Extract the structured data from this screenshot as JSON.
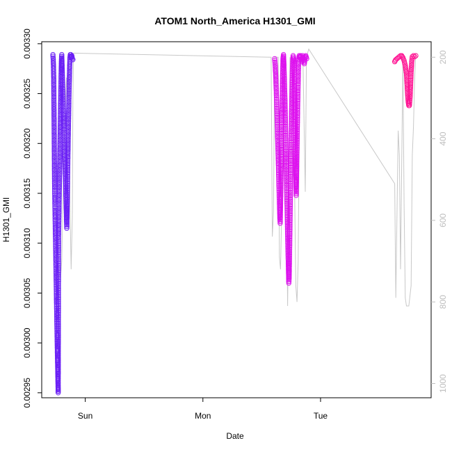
{
  "chart_data": {
    "type": "scatter",
    "title": "ATOM1 North_America H1301_GMI",
    "xlabel": "Date",
    "ylabel": "H1301_GMI",
    "x_ticks": [
      "Sun",
      "Mon",
      "Tue"
    ],
    "x_tick_values": [
      1.0,
      2.0,
      3.0
    ],
    "xlim": [
      0.63,
      3.94
    ],
    "ylim": [
      0.002945,
      0.003302
    ],
    "y_ticks": [
      0.00295,
      0.003,
      0.00305,
      0.0031,
      0.00315,
      0.0032,
      0.00325,
      0.0033
    ],
    "y_tick_labels": [
      "0.00295",
      "0.00300",
      "0.00305",
      "0.00310",
      "0.00315",
      "0.00320",
      "0.00325",
      "0.00330"
    ],
    "y2lim": [
      1035,
      162
    ],
    "y2_ticks": [
      200,
      400,
      600,
      800,
      1000
    ],
    "y2_tick_labels": [
      "200",
      "400",
      "600",
      "800",
      "1000"
    ],
    "grid": false,
    "legend": "none",
    "colors": {
      "series1": "#6a1ff5",
      "series2": "#dd11ee",
      "series3": "#ff1493",
      "secondary": "#c8c8c8"
    },
    "series": [
      {
        "points": [
          [
            0.725,
            0.003289
          ],
          [
            0.728,
            0.003284
          ],
          [
            0.73,
            0.003276
          ],
          [
            0.732,
            0.003265
          ],
          [
            0.733,
            0.00325
          ],
          [
            0.734,
            0.003238
          ],
          [
            0.735,
            0.003225
          ],
          [
            0.736,
            0.00321
          ],
          [
            0.737,
            0.003195
          ],
          [
            0.738,
            0.00318
          ],
          [
            0.739,
            0.003165
          ],
          [
            0.74,
            0.003155
          ],
          [
            0.741,
            0.003148
          ],
          [
            0.742,
            0.00314
          ],
          [
            0.743,
            0.003133
          ],
          [
            0.744,
            0.003125
          ],
          [
            0.745,
            0.003118
          ],
          [
            0.746,
            0.00311
          ],
          [
            0.747,
            0.003105
          ],
          [
            0.748,
            0.0031
          ],
          [
            0.749,
            0.003093
          ],
          [
            0.75,
            0.003085
          ],
          [
            0.751,
            0.003077
          ],
          [
            0.752,
            0.00307
          ],
          [
            0.753,
            0.003062
          ],
          [
            0.754,
            0.003055
          ],
          [
            0.755,
            0.003048
          ],
          [
            0.756,
            0.00304
          ],
          [
            0.757,
            0.003033
          ],
          [
            0.758,
            0.003025
          ],
          [
            0.759,
            0.003018
          ],
          [
            0.76,
            0.003011
          ],
          [
            0.761,
            0.003005
          ],
          [
            0.762,
            0.002998
          ],
          [
            0.763,
            0.002992
          ],
          [
            0.764,
            0.002986
          ],
          [
            0.765,
            0.00298
          ],
          [
            0.766,
            0.002974
          ],
          [
            0.767,
            0.002968
          ],
          [
            0.768,
            0.002962
          ],
          [
            0.769,
            0.002956
          ],
          [
            0.77,
            0.00295
          ],
          [
            0.771,
            0.003
          ],
          [
            0.773,
            0.003105
          ],
          [
            0.775,
            0.00312
          ],
          [
            0.777,
            0.003135
          ],
          [
            0.779,
            0.00315
          ],
          [
            0.781,
            0.003165
          ],
          [
            0.783,
            0.00318
          ],
          [
            0.785,
            0.003195
          ],
          [
            0.787,
            0.00321
          ],
          [
            0.789,
            0.003225
          ],
          [
            0.791,
            0.00324
          ],
          [
            0.793,
            0.003255
          ],
          [
            0.795,
            0.00327
          ],
          [
            0.797,
            0.003282
          ],
          [
            0.8,
            0.003289
          ],
          [
            0.803,
            0.003278
          ],
          [
            0.806,
            0.003266
          ],
          [
            0.809,
            0.003254
          ],
          [
            0.812,
            0.003242
          ],
          [
            0.815,
            0.00323
          ],
          [
            0.818,
            0.003218
          ],
          [
            0.821,
            0.003206
          ],
          [
            0.824,
            0.003194
          ],
          [
            0.827,
            0.003182
          ],
          [
            0.83,
            0.00317
          ],
          [
            0.833,
            0.00316
          ],
          [
            0.835,
            0.00315
          ],
          [
            0.837,
            0.00314
          ],
          [
            0.839,
            0.003132
          ],
          [
            0.841,
            0.003122
          ],
          [
            0.843,
            0.003115
          ],
          [
            0.846,
            0.003135
          ],
          [
            0.849,
            0.00316
          ],
          [
            0.852,
            0.003185
          ],
          [
            0.855,
            0.003205
          ],
          [
            0.858,
            0.003225
          ],
          [
            0.861,
            0.003245
          ],
          [
            0.864,
            0.003262
          ],
          [
            0.867,
            0.003275
          ],
          [
            0.87,
            0.003286
          ],
          [
            0.873,
            0.003289
          ],
          [
            0.877,
            0.003289
          ],
          [
            0.881,
            0.003286
          ],
          [
            0.886,
            0.003288
          ],
          [
            0.89,
            0.003285
          ],
          [
            0.895,
            0.003284
          ]
        ]
      },
      {
        "points": [
          [
            2.61,
            0.003285
          ],
          [
            2.615,
            0.003278
          ],
          [
            2.62,
            0.003265
          ],
          [
            2.625,
            0.003248
          ],
          [
            2.63,
            0.00323
          ],
          [
            2.634,
            0.003212
          ],
          [
            2.638,
            0.003195
          ],
          [
            2.642,
            0.003178
          ],
          [
            2.646,
            0.00316
          ],
          [
            2.65,
            0.003142
          ],
          [
            2.654,
            0.003125
          ],
          [
            2.657,
            0.00312
          ],
          [
            2.66,
            0.003138
          ],
          [
            2.663,
            0.003158
          ],
          [
            2.666,
            0.00318
          ],
          [
            2.669,
            0.003205
          ],
          [
            2.672,
            0.003228
          ],
          [
            2.675,
            0.00325
          ],
          [
            2.678,
            0.00327
          ],
          [
            2.681,
            0.003285
          ],
          [
            2.685,
            0.003289
          ],
          [
            2.689,
            0.003278
          ],
          [
            2.693,
            0.003262
          ],
          [
            2.697,
            0.003245
          ],
          [
            2.7,
            0.003228
          ],
          [
            2.703,
            0.00321
          ],
          [
            2.706,
            0.003192
          ],
          [
            2.709,
            0.003175
          ],
          [
            2.712,
            0.003158
          ],
          [
            2.715,
            0.00314
          ],
          [
            2.718,
            0.003122
          ],
          [
            2.721,
            0.003105
          ],
          [
            2.724,
            0.00309
          ],
          [
            2.727,
            0.003075
          ],
          [
            2.73,
            0.00306
          ],
          [
            2.733,
            0.003065
          ],
          [
            2.736,
            0.003085
          ],
          [
            2.739,
            0.00311
          ],
          [
            2.742,
            0.003135
          ],
          [
            2.745,
            0.00316
          ],
          [
            2.748,
            0.003185
          ],
          [
            2.751,
            0.00321
          ],
          [
            2.754,
            0.003232
          ],
          [
            2.757,
            0.003252
          ],
          [
            2.76,
            0.00327
          ],
          [
            2.763,
            0.003282
          ],
          [
            2.767,
            0.003288
          ],
          [
            2.772,
            0.003285
          ],
          [
            2.777,
            0.003262
          ],
          [
            2.781,
            0.003238
          ],
          [
            2.784,
            0.003215
          ],
          [
            2.787,
            0.003192
          ],
          [
            2.79,
            0.003168
          ],
          [
            2.793,
            0.003148
          ],
          [
            2.797,
            0.003175
          ],
          [
            2.801,
            0.003205
          ],
          [
            2.805,
            0.003235
          ],
          [
            2.809,
            0.00326
          ],
          [
            2.813,
            0.00328
          ],
          [
            2.818,
            0.003288
          ],
          [
            2.824,
            0.003286
          ],
          [
            2.83,
            0.003288
          ],
          [
            2.836,
            0.003285
          ],
          [
            2.842,
            0.003282
          ],
          [
            2.848,
            0.003288
          ],
          [
            2.855,
            0.003284
          ],
          [
            2.862,
            0.00328
          ],
          [
            2.868,
            0.003286
          ],
          [
            2.875,
            0.003288
          ],
          [
            2.882,
            0.003285
          ]
        ]
      },
      {
        "points": [
          [
            3.63,
            0.003282
          ],
          [
            3.64,
            0.003284
          ],
          [
            3.65,
            0.003285
          ],
          [
            3.66,
            0.003286
          ],
          [
            3.67,
            0.003287
          ],
          [
            3.68,
            0.003288
          ],
          [
            3.69,
            0.003288
          ],
          [
            3.7,
            0.003286
          ],
          [
            3.71,
            0.003283
          ],
          [
            3.72,
            0.003278
          ],
          [
            3.73,
            0.00327
          ],
          [
            3.735,
            0.00326
          ],
          [
            3.74,
            0.00325
          ],
          [
            3.745,
            0.003242
          ],
          [
            3.75,
            0.003238
          ],
          [
            3.755,
            0.003238
          ],
          [
            3.76,
            0.003245
          ],
          [
            3.765,
            0.003258
          ],
          [
            3.77,
            0.003272
          ],
          [
            3.775,
            0.003282
          ],
          [
            3.78,
            0.003287
          ],
          [
            3.79,
            0.003288
          ],
          [
            3.8,
            0.003287
          ],
          [
            3.81,
            0.003288
          ]
        ]
      }
    ],
    "secondary_line": [
      [
        0.72,
        215
      ],
      [
        0.75,
        600
      ],
      [
        0.77,
        720
      ],
      [
        0.79,
        740
      ],
      [
        0.8,
        700
      ],
      [
        0.82,
        420
      ],
      [
        0.84,
        250
      ],
      [
        0.85,
        300
      ],
      [
        0.86,
        200
      ],
      [
        0.87,
        560
      ],
      [
        0.88,
        720
      ],
      [
        0.89,
        590
      ],
      [
        0.895,
        300
      ],
      [
        0.9,
        190
      ],
      [
        2.58,
        200
      ],
      [
        2.59,
        640
      ],
      [
        2.6,
        580
      ],
      [
        2.61,
        200
      ],
      [
        2.64,
        200
      ],
      [
        2.65,
        690
      ],
      [
        2.66,
        720
      ],
      [
        2.67,
        580
      ],
      [
        2.68,
        380
      ],
      [
        2.7,
        200
      ],
      [
        2.72,
        810
      ],
      [
        2.73,
        560
      ],
      [
        2.74,
        200
      ],
      [
        2.76,
        450
      ],
      [
        2.78,
        530
      ],
      [
        2.79,
        760
      ],
      [
        2.8,
        800
      ],
      [
        2.81,
        700
      ],
      [
        2.82,
        350
      ],
      [
        2.83,
        200
      ],
      [
        2.85,
        200
      ],
      [
        2.87,
        530
      ],
      [
        2.88,
        200
      ],
      [
        2.9,
        180
      ],
      [
        3.63,
        510
      ],
      [
        3.64,
        790
      ],
      [
        3.66,
        380
      ],
      [
        3.67,
        440
      ],
      [
        3.68,
        720
      ],
      [
        3.7,
        200
      ],
      [
        3.71,
        560
      ],
      [
        3.72,
        790
      ],
      [
        3.73,
        810
      ],
      [
        3.75,
        810
      ],
      [
        3.77,
        760
      ],
      [
        3.78,
        440
      ],
      [
        3.79,
        370
      ],
      [
        3.8,
        250
      ],
      [
        3.81,
        190
      ]
    ]
  }
}
